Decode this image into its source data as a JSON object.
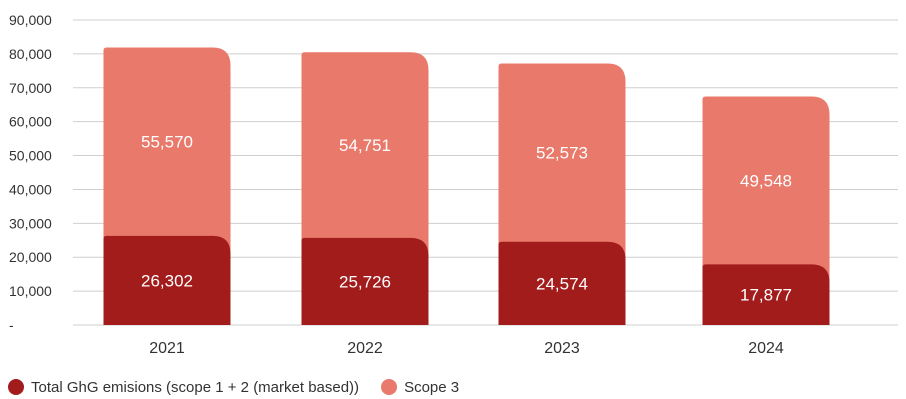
{
  "chart_data": {
    "type": "bar",
    "stacked": true,
    "categories": [
      "2021",
      "2022",
      "2023",
      "2024"
    ],
    "series": [
      {
        "name": "Total GhG emisions (scope 1 + 2 (market based))",
        "values": [
          26302,
          25726,
          24574,
          17877
        ],
        "labels": [
          "26,302",
          "25,726",
          "24,574",
          "17,877"
        ],
        "color": "#a31c1c"
      },
      {
        "name": "Scope 3",
        "values": [
          55570,
          54751,
          52573,
          49548
        ],
        "labels": [
          "55,570",
          "54,751",
          "52,573",
          "49,548"
        ],
        "color": "#e8796b"
      }
    ],
    "ylim": [
      0,
      90000
    ],
    "y_ticks": [
      {
        "value": 0,
        "label": "-"
      },
      {
        "value": 10000,
        "label": "10,000"
      },
      {
        "value": 20000,
        "label": "20,000"
      },
      {
        "value": 30000,
        "label": "30,000"
      },
      {
        "value": 40000,
        "label": "40,000"
      },
      {
        "value": 50000,
        "label": "50,000"
      },
      {
        "value": 60000,
        "label": "60,000"
      },
      {
        "value": 70000,
        "label": "70,000"
      },
      {
        "value": 80000,
        "label": "80,000"
      },
      {
        "value": 90000,
        "label": "90,000"
      }
    ],
    "grid": true,
    "legend_position": "bottom-left"
  }
}
